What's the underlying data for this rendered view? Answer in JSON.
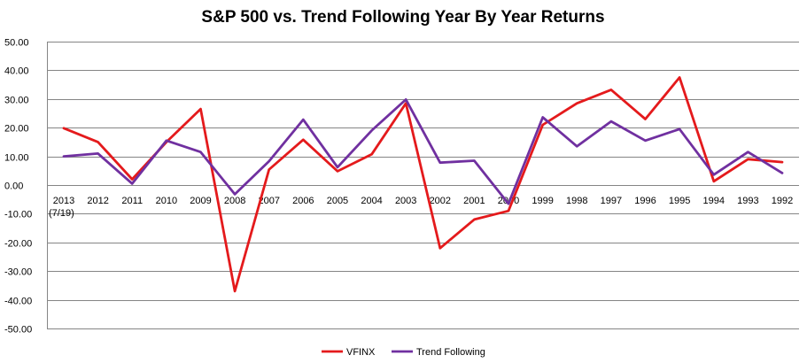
{
  "chart_data": {
    "type": "line",
    "title": "S&P 500 vs. Trend Following Year By Year Returns",
    "xlabel": "",
    "ylabel": "",
    "categories": [
      "2013 (7/19)",
      "2012",
      "2011",
      "2010",
      "2009",
      "2008",
      "2007",
      "2006",
      "2005",
      "2004",
      "2003",
      "2002",
      "2001",
      "2000",
      "1999",
      "1998",
      "1997",
      "1996",
      "1995",
      "1994",
      "1993",
      "1992"
    ],
    "category_labels": [
      [
        "2013",
        "(7/19)"
      ],
      [
        "2012"
      ],
      [
        "2011"
      ],
      [
        "2010"
      ],
      [
        "2009"
      ],
      [
        "2008"
      ],
      [
        "2007"
      ],
      [
        "2006"
      ],
      [
        "2005"
      ],
      [
        "2004"
      ],
      [
        "2003"
      ],
      [
        "2002"
      ],
      [
        "2001"
      ],
      [
        "2000"
      ],
      [
        "1999"
      ],
      [
        "1998"
      ],
      [
        "1997"
      ],
      [
        "1996"
      ],
      [
        "1995"
      ],
      [
        "1994"
      ],
      [
        "1993"
      ],
      [
        "1992"
      ]
    ],
    "ylim": [
      -50,
      50
    ],
    "yticks": [
      50,
      40,
      30,
      20,
      10,
      0,
      -10,
      -20,
      -30,
      -40,
      -50
    ],
    "ytick_labels": [
      "50.00",
      "40.00",
      "30.00",
      "20.00",
      "10.00",
      "0.00",
      "-10.00",
      "-20.00",
      "-30.00",
      "-40.00",
      "-50.00"
    ],
    "grid": "horizontal",
    "legend_position": "bottom",
    "series": [
      {
        "name": "VFINX",
        "color": "#e41a1c",
        "values": [
          19.8,
          15.0,
          2.0,
          15.0,
          26.5,
          -37.0,
          5.4,
          15.8,
          4.8,
          10.7,
          28.5,
          -22.0,
          -12.0,
          -9.0,
          21.0,
          28.5,
          33.2,
          23.0,
          37.5,
          1.3,
          9.0,
          8.0
        ]
      },
      {
        "name": "Trend Following",
        "color": "#7030a0",
        "values": [
          10.0,
          11.0,
          0.5,
          15.5,
          11.5,
          -3.2,
          8.3,
          22.8,
          6.2,
          19.0,
          29.8,
          7.8,
          8.5,
          -6.5,
          23.6,
          13.5,
          22.2,
          15.5,
          19.5,
          3.6,
          11.5,
          4.2
        ]
      }
    ]
  }
}
